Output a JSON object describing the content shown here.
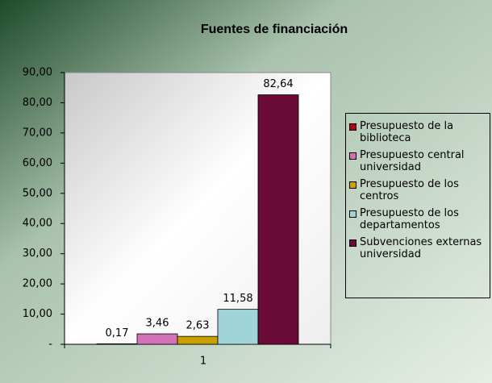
{
  "chart_data": {
    "type": "bar",
    "title": "Fuentes de financiación",
    "categories": [
      "1"
    ],
    "series": [
      {
        "name": "Presupuesto de la biblioteca",
        "color": "#b00018",
        "values": [
          0.17
        ],
        "value_labels": [
          "0,17"
        ]
      },
      {
        "name": "Presupuesto central universidad",
        "color": "#d272b6",
        "values": [
          3.46
        ],
        "value_labels": [
          "3,46"
        ]
      },
      {
        "name": "Presupuesto de los centros",
        "color": "#c8a000",
        "values": [
          2.63
        ],
        "value_labels": [
          "2,63"
        ]
      },
      {
        "name": "Presupuesto de los departamentos",
        "color": "#9fd4d8",
        "values": [
          11.58
        ],
        "value_labels": [
          "11,58"
        ]
      },
      {
        "name": "Subvenciones externas universidad",
        "color": "#6a0a36",
        "values": [
          82.64
        ],
        "value_labels": [
          "82,64"
        ]
      }
    ],
    "ylim": [
      0,
      90
    ],
    "yticks": [
      {
        "value": 0,
        "label": "-"
      },
      {
        "value": 10,
        "label": "10,00"
      },
      {
        "value": 20,
        "label": "20,00"
      },
      {
        "value": 30,
        "label": "30,00"
      },
      {
        "value": 40,
        "label": "40,00"
      },
      {
        "value": 50,
        "label": "50,00"
      },
      {
        "value": 60,
        "label": "60,00"
      },
      {
        "value": 70,
        "label": "70,00"
      },
      {
        "value": 80,
        "label": "80,00"
      },
      {
        "value": 90,
        "label": "90,00"
      }
    ],
    "grid": false,
    "legend": "right"
  }
}
